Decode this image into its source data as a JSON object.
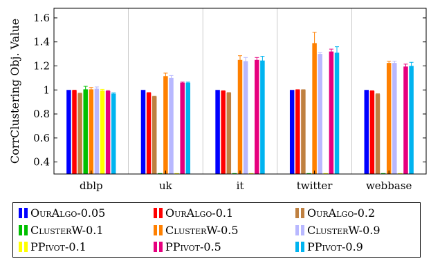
{
  "chart_data": {
    "type": "bar",
    "categories": [
      "dblp",
      "uk",
      "it",
      "twitter",
      "webbase"
    ],
    "ylabel": "CorrClustering Obj. Value",
    "xlabel": "",
    "title": "",
    "ylim": [
      0.3,
      1.68
    ],
    "yticks": [
      0.4,
      0.6,
      0.8,
      1,
      1.2,
      1.4,
      1.6
    ],
    "ytick_labels": [
      "0.4",
      "0.6",
      "0.8",
      "1",
      "1.2",
      "1.4",
      "1.6"
    ],
    "grid": "vertical-separators",
    "legend_position": "bottom",
    "series": [
      {
        "name": "OurAlgo-0.05",
        "color": "#0000ff",
        "values": [
          1.0,
          1.0,
          1.0,
          1.0,
          1.0
        ],
        "errors": [
          0,
          0,
          0,
          0,
          0
        ]
      },
      {
        "name": "OurAlgo-0.1",
        "color": "#ff0000",
        "values": [
          0.995,
          0.975,
          0.99,
          1.0,
          0.99
        ],
        "errors": [
          0.003,
          0.003,
          0.003,
          0.002,
          0.003
        ]
      },
      {
        "name": "OurAlgo-0.2",
        "color": "#bf8040",
        "values": [
          0.97,
          0.945,
          0.975,
          1.0,
          0.965
        ],
        "errors": [
          0.003,
          0.003,
          0.003,
          0.002,
          0.003
        ]
      },
      {
        "name": "ClusterW-0.1",
        "color": "#00c000",
        "values": [
          1.005,
          0.3,
          0.3,
          0.3,
          0.3
        ],
        "errors": [
          0.025,
          0,
          0,
          0,
          0
        ]
      },
      {
        "name": "ClusterW-0.5",
        "color": "#ff8000",
        "values": [
          1.005,
          1.115,
          1.25,
          1.39,
          1.225
        ],
        "errors": [
          0.015,
          0.025,
          0.035,
          0.09,
          0.015
        ]
      },
      {
        "name": "ClusterW-0.9",
        "color": "#b8b8ff",
        "values": [
          1.01,
          1.1,
          1.24,
          1.3,
          1.225
        ],
        "errors": [
          0.015,
          0.02,
          0.03,
          0.01,
          0.015
        ]
      },
      {
        "name": "PPivot-0.1",
        "color": "#ffff00",
        "values": [
          0.995,
          0.3,
          0.3,
          0.3,
          0.3
        ],
        "errors": [
          0.01,
          0,
          0,
          0,
          0
        ]
      },
      {
        "name": "PPivot-0.5",
        "color": "#e6007e",
        "values": [
          0.99,
          1.06,
          1.25,
          1.32,
          1.195
        ],
        "errors": [
          0.005,
          0.005,
          0.02,
          0.02,
          0.02
        ]
      },
      {
        "name": "PPivot-0.9",
        "color": "#00b4f0",
        "values": [
          0.97,
          1.06,
          1.245,
          1.31,
          1.2
        ],
        "errors": [
          0.005,
          0.005,
          0.035,
          0.05,
          0.03
        ]
      }
    ]
  }
}
